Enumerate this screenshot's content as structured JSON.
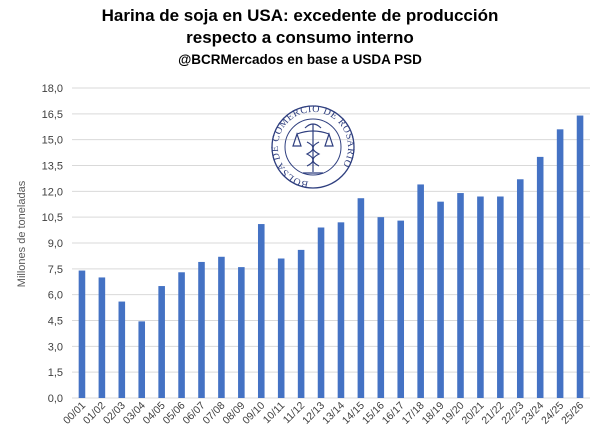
{
  "chart_data": {
    "type": "bar",
    "title": "Harina de soja en USA: excedente de producción",
    "title_line2": "respecto a consumo interno",
    "subtitle": "@BCRMercados en base a USDA PSD",
    "ylabel": "Millones de toneladas",
    "xlabel": "",
    "ylim": [
      0,
      18
    ],
    "ytick_labels": [
      "0,0",
      "1,5",
      "3,0",
      "4,5",
      "6,0",
      "7,5",
      "9,0",
      "10,5",
      "12,0",
      "13,5",
      "15,0",
      "16,5",
      "18,0"
    ],
    "categories": [
      "00/01",
      "01/02",
      "02/03",
      "03/04",
      "04/05",
      "05/06",
      "06/07",
      "07/08",
      "08/09",
      "09/10",
      "10/11",
      "11/12",
      "12/13",
      "13/14",
      "14/15",
      "15/16",
      "16/17",
      "17/18",
      "18/19",
      "19/20",
      "20/21",
      "21/22",
      "22/23",
      "23/24",
      "24/25",
      "25/26"
    ],
    "values": [
      7.4,
      7.0,
      5.6,
      4.45,
      6.5,
      7.3,
      7.9,
      8.2,
      7.6,
      10.1,
      8.1,
      8.6,
      9.9,
      10.2,
      11.6,
      10.5,
      10.3,
      12.4,
      11.4,
      11.9,
      11.7,
      11.7,
      12.7,
      14.0,
      15.6,
      16.4
    ],
    "grid": true,
    "bar_color": "#4472c4",
    "logo_text": "BOLSA DE COMERCIO DE ROSARIO",
    "logo_color": "#2f3f7f"
  }
}
